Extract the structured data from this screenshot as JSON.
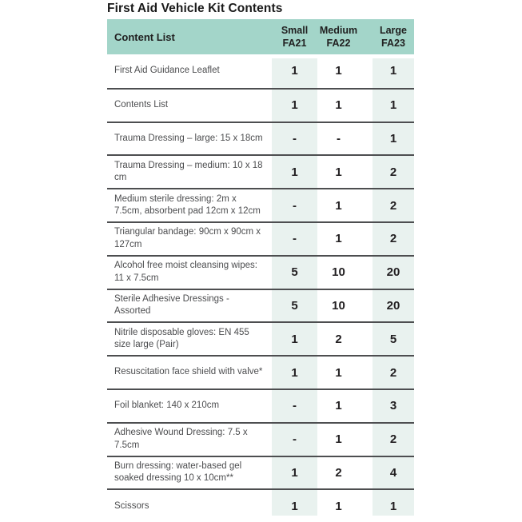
{
  "title": "First Aid Vehicle Kit Contents",
  "colors": {
    "header_bg": "#a3d5c9",
    "column_tint": "#e9f2ef",
    "divider": "#4d4e50"
  },
  "table": {
    "header": {
      "content_label": "Content List",
      "columns": [
        {
          "size": "Small",
          "code": "FA21"
        },
        {
          "size": "Medium",
          "code": "FA22"
        },
        {
          "size": "Large",
          "code": "FA23"
        }
      ]
    },
    "rows": [
      {
        "item": "First Aid Guidance Leaflet",
        "small": "1",
        "medium": "1",
        "large": "1"
      },
      {
        "item": "Contents List",
        "small": "1",
        "medium": "1",
        "large": "1"
      },
      {
        "item": "Trauma Dressing – large: 15 x 18cm",
        "small": "-",
        "medium": "-",
        "large": "1"
      },
      {
        "item": "Trauma Dressing – medium: 10 x 18 cm",
        "small": "1",
        "medium": "1",
        "large": "2"
      },
      {
        "item": "Medium sterile dressing: 2m x 7.5cm, absorbent pad 12cm x 12cm",
        "small": "-",
        "medium": "1",
        "large": "2"
      },
      {
        "item": "Triangular bandage: 90cm x 90cm x 127cm",
        "small": "-",
        "medium": "1",
        "large": "2"
      },
      {
        "item": "Alcohol free moist cleansing wipes: 11 x 7.5cm",
        "small": "5",
        "medium": "10",
        "large": "20"
      },
      {
        "item": "Sterile Adhesive Dressings - Assorted",
        "small": "5",
        "medium": "10",
        "large": "20"
      },
      {
        "item": "Nitrile disposable gloves: EN 455 size large (Pair)",
        "small": "1",
        "medium": "2",
        "large": "5"
      },
      {
        "item": "Resuscitation face shield with valve*",
        "small": "1",
        "medium": "1",
        "large": "2"
      },
      {
        "item": "Foil blanket: 140 x 210cm",
        "small": "-",
        "medium": "1",
        "large": "3"
      },
      {
        "item": "Adhesive Wound Dressing: 7.5 x 7.5cm",
        "small": "-",
        "medium": "1",
        "large": "2"
      },
      {
        "item": "Burn dressing: water-based gel soaked dressing 10 x 10cm**",
        "small": "1",
        "medium": "2",
        "large": "4"
      },
      {
        "item": "Scissors",
        "small": "1",
        "medium": "1",
        "large": "1"
      }
    ]
  }
}
